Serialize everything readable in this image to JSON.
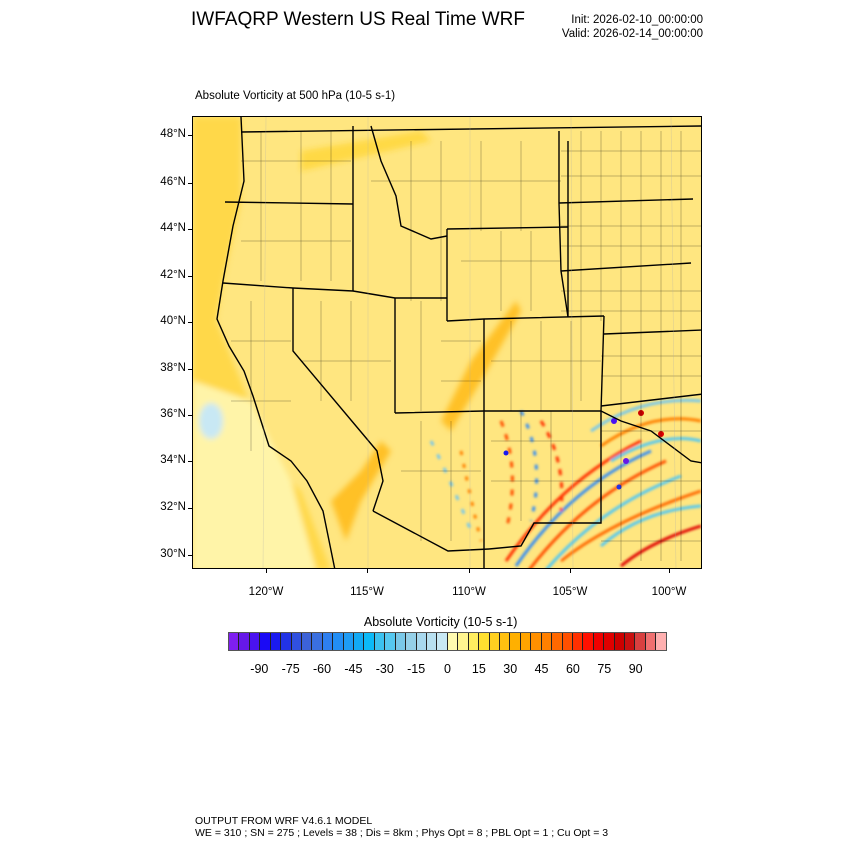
{
  "header": {
    "title": "IWFAQRP Western US Real Time WRF",
    "init": "Init: 2026-02-10_00:00:00",
    "valid": "Valid: 2026-02-14_00:00:00",
    "subtitle": "Absolute Vorticity at 500 hPa   (10-5 s-1)"
  },
  "map": {
    "region": "Western United States",
    "lat_labels": [
      "48°N",
      "46°N",
      "44°N",
      "42°N",
      "40°N",
      "38°N",
      "36°N",
      "34°N",
      "32°N",
      "30°N"
    ],
    "lon_labels": [
      "120°W",
      "115°W",
      "110°W",
      "105°W",
      "100°W"
    ],
    "base_color": "#ffe680"
  },
  "colorbar": {
    "title": "Absolute Vorticity  (10-5 s-1)",
    "labels": [
      "-90",
      "-75",
      "-60",
      "-45",
      "-30",
      "-15",
      "0",
      "15",
      "30",
      "45",
      "60",
      "75",
      "90"
    ],
    "range": [
      -105,
      105
    ],
    "step": 5,
    "colors": [
      "#7f1ff0",
      "#6618e8",
      "#4a12f0",
      "#1a0af5",
      "#1a1af0",
      "#2233e6",
      "#3050e0",
      "#3c62d8",
      "#3a6fe0",
      "#2e7ff0",
      "#228ef5",
      "#1e9cf5",
      "#12aaf5",
      "#0cbaf8",
      "#3cc2f0",
      "#56c8f0",
      "#7ac8e8",
      "#95d0e8",
      "#a8d8ee",
      "#b8e0f0",
      "#c8e8f4",
      "#fffab0",
      "#fff590",
      "#ffee60",
      "#ffe030",
      "#ffd020",
      "#ffc010",
      "#ffb000",
      "#ffa400",
      "#ff9000",
      "#ff8000",
      "#ff6800",
      "#ff5000",
      "#ff3000",
      "#ff1000",
      "#f00000",
      "#e00000",
      "#cc0000",
      "#c81010",
      "#d84040",
      "#f07070",
      "#ffb0b0"
    ]
  },
  "footer": {
    "line1": "OUTPUT FROM WRF V4.6.1 MODEL",
    "line2": "WE = 310 ; SN = 275 ; Levels = 38 ; Dis = 8km ; Phys Opt = 8 ; PBL Opt = 1 ; Cu Opt = 3"
  }
}
